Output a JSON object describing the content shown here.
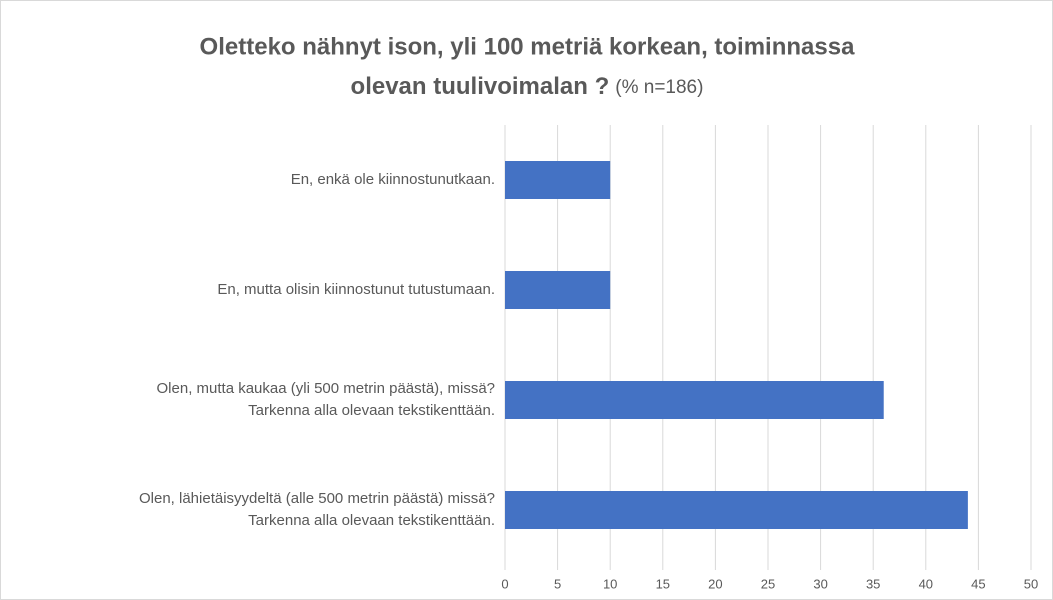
{
  "chart_data": {
    "type": "barh",
    "title": [
      "Oletteko nähnyt ison, yli 100 metriä korkean, toiminnassa",
      "olevan tuulivoimalan ?"
    ],
    "title_note": "(% n=186)",
    "categories": [
      [
        "En, enkä ole kiinnostunutkaan."
      ],
      [
        "En, mutta olisin kiinnostunut tutustumaan."
      ],
      [
        "Olen, mutta kaukaa (yli 500 metrin päästä), missä?",
        "Tarkenna alla olevaan tekstikenttään."
      ],
      [
        "Olen, lähietäisyydeltä (alle 500 metrin päästä) missä?",
        "Tarkenna alla olevaan tekstikenttään."
      ]
    ],
    "values": [
      10,
      10,
      36,
      44
    ],
    "color": "#4472c4",
    "xlim": [
      0,
      50
    ],
    "xticks": [
      0,
      5,
      10,
      15,
      20,
      25,
      30,
      35,
      40,
      45,
      50
    ],
    "grid": true
  }
}
